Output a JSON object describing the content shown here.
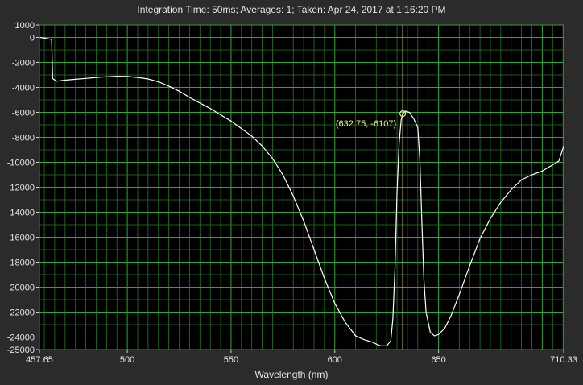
{
  "header": {
    "title": "Integration Time: 50ms;  Averages: 1;  Taken: Apr 24, 2017 at 1:16:20 PM"
  },
  "chart_data": {
    "type": "line",
    "title": "Integration Time: 50ms;  Averages: 1;  Taken: Apr 24, 2017 at 1:16:20 PM",
    "xlabel": "Wavelength (nm)",
    "ylabel": "",
    "xlim": [
      457.65,
      710.33
    ],
    "ylim": [
      -25000,
      1000
    ],
    "x_ticks": [
      457.65,
      500,
      550,
      600,
      650,
      710.33
    ],
    "y_ticks": [
      1000,
      0,
      -2000,
      -4000,
      -6000,
      -8000,
      -10000,
      -12000,
      -14000,
      -16000,
      -18000,
      -20000,
      -22000,
      -24000,
      -25000
    ],
    "grid": true,
    "colors": {
      "background": "#000000",
      "grid": "#1f7a1f",
      "line": "#ffffff",
      "cursor": "#f0f088"
    },
    "cursor": {
      "x": 632.75,
      "y": -6107,
      "label": "(632.75, -6107)"
    },
    "series": [
      {
        "values": [
          [
            458.0,
            0
          ],
          [
            460.0,
            -50
          ],
          [
            462.0,
            -120
          ],
          [
            463.5,
            -150
          ],
          [
            464.0,
            -3300
          ],
          [
            466.0,
            -3500
          ],
          [
            470.0,
            -3420
          ],
          [
            475.0,
            -3350
          ],
          [
            480.0,
            -3280
          ],
          [
            485.0,
            -3200
          ],
          [
            490.0,
            -3150
          ],
          [
            495.0,
            -3100
          ],
          [
            500.0,
            -3120
          ],
          [
            505.0,
            -3200
          ],
          [
            510.0,
            -3320
          ],
          [
            515.0,
            -3550
          ],
          [
            520.0,
            -3900
          ],
          [
            525.0,
            -4300
          ],
          [
            530.0,
            -4800
          ],
          [
            535.0,
            -5250
          ],
          [
            540.0,
            -5700
          ],
          [
            545.0,
            -6200
          ],
          [
            550.0,
            -6700
          ],
          [
            555.0,
            -7300
          ],
          [
            560.0,
            -7900
          ],
          [
            565.0,
            -8700
          ],
          [
            570.0,
            -9700
          ],
          [
            575.0,
            -11000
          ],
          [
            580.0,
            -12700
          ],
          [
            585.0,
            -14700
          ],
          [
            590.0,
            -17000
          ],
          [
            595.0,
            -19300
          ],
          [
            600.0,
            -21300
          ],
          [
            605.0,
            -22800
          ],
          [
            610.0,
            -23900
          ],
          [
            614.0,
            -24200
          ],
          [
            618.0,
            -24400
          ],
          [
            622.0,
            -24700
          ],
          [
            625.0,
            -24700
          ],
          [
            627.0,
            -24300
          ],
          [
            628.0,
            -22500
          ],
          [
            629.0,
            -18500
          ],
          [
            630.0,
            -12500
          ],
          [
            631.0,
            -8500
          ],
          [
            632.0,
            -6600
          ],
          [
            632.75,
            -6107
          ],
          [
            634.0,
            -5900
          ],
          [
            636.0,
            -6000
          ],
          [
            638.0,
            -6500
          ],
          [
            640.0,
            -7200
          ],
          [
            641.0,
            -9800
          ],
          [
            642.0,
            -15000
          ],
          [
            643.0,
            -19500
          ],
          [
            644.0,
            -22000
          ],
          [
            646.0,
            -23600
          ],
          [
            648.0,
            -23900
          ],
          [
            650.0,
            -23800
          ],
          [
            653.0,
            -23300
          ],
          [
            656.0,
            -22300
          ],
          [
            660.0,
            -20600
          ],
          [
            665.0,
            -18300
          ],
          [
            670.0,
            -16100
          ],
          [
            675.0,
            -14500
          ],
          [
            680.0,
            -13200
          ],
          [
            685.0,
            -12200
          ],
          [
            690.0,
            -11400
          ],
          [
            695.0,
            -11000
          ],
          [
            700.0,
            -10700
          ],
          [
            705.0,
            -10200
          ],
          [
            708.0,
            -9900
          ],
          [
            710.33,
            -8700
          ]
        ]
      }
    ]
  }
}
